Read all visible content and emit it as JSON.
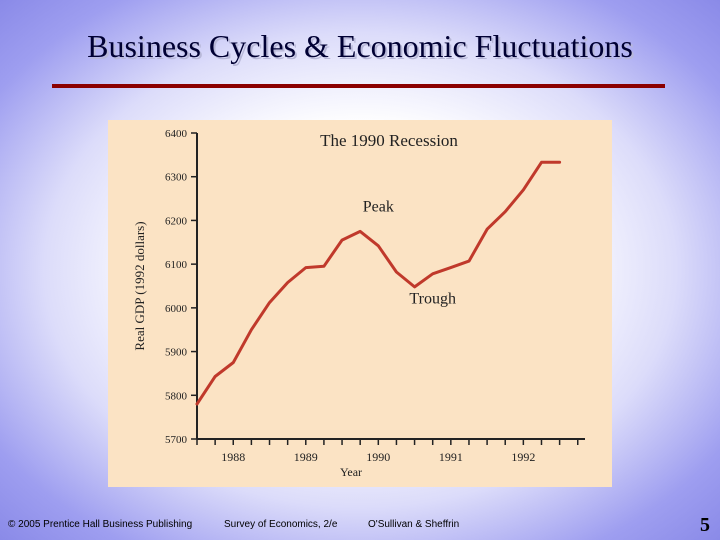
{
  "slide": {
    "title": "Business Cycles & Economic Fluctuations",
    "footer": {
      "copyright": "© 2005 Prentice Hall Business Publishing",
      "book": "Survey of Economics, 2/e",
      "authors": "O'Sullivan & Sheffrin"
    },
    "page_number": "5"
  },
  "colors": {
    "line": "#c0392b",
    "title_rule": "#8b0000",
    "panel": "#fbe3c4"
  },
  "chart_data": {
    "type": "line",
    "title": "The 1990 Recession",
    "xlabel": "Year",
    "ylabel": "Real GDP (1992 dollars)",
    "xlim": [
      1987.5,
      1992.85
    ],
    "ylim": [
      5700,
      6400
    ],
    "yticks": [
      5700,
      5800,
      5900,
      6000,
      6100,
      6200,
      6300,
      6400
    ],
    "xticks": [
      1988,
      1989,
      1990,
      1991,
      1992
    ],
    "grid": false,
    "annotations": [
      {
        "text": "Peak",
        "x": 1990,
        "y": 6220
      },
      {
        "text": "Trough",
        "x": 1990.75,
        "y": 6010
      }
    ],
    "series": [
      {
        "x": [
          1987.5,
          1987.75,
          1988.0,
          1988.25,
          1988.5,
          1988.75,
          1989.0,
          1989.25,
          1989.5,
          1989.75,
          1990.0,
          1990.25,
          1990.5,
          1990.75,
          1991.0,
          1991.25,
          1991.5,
          1991.75,
          1992.0,
          1992.25,
          1992.5
        ],
        "values": [
          5780,
          5843,
          5875,
          5950,
          6012,
          6058,
          6092,
          6095,
          6155,
          6175,
          6142,
          6082,
          6048,
          6078,
          6092,
          6107,
          6180,
          6220,
          6270,
          6333,
          6333
        ]
      }
    ]
  }
}
